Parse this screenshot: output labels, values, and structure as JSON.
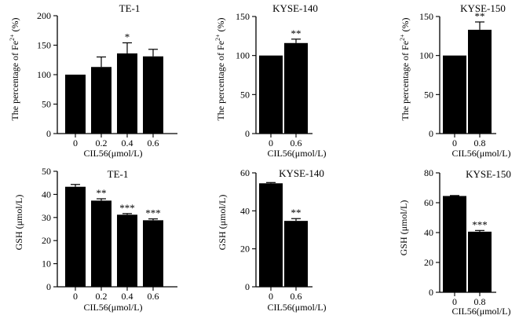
{
  "figure_label": "Fe2+ and GSH levels after CIL56 treatment",
  "chart_data": [
    {
      "type": "bar",
      "title": "TE-1",
      "ylabel_main": "The percentage of Fe",
      "ylabel_sup": "2+",
      "ylabel_tail": " (%)",
      "xlabel": "CIL56(μmol/L)",
      "categories": [
        "0",
        "0.2",
        "0.4",
        "0.6"
      ],
      "values": [
        100,
        113,
        136,
        131
      ],
      "errors": [
        0,
        17,
        18,
        12
      ],
      "significance": [
        "",
        "",
        "*",
        ""
      ],
      "yticks": [
        0,
        50,
        100,
        150,
        200
      ],
      "ylim": [
        0,
        200
      ]
    },
    {
      "type": "bar",
      "title": "KYSE-140",
      "ylabel_main": "The percentage of Fe",
      "ylabel_sup": "2+",
      "ylabel_tail": " (%)",
      "xlabel": "CIL56(μmol/L)",
      "categories": [
        "0",
        "0.6"
      ],
      "values": [
        100,
        116
      ],
      "errors": [
        0,
        5
      ],
      "significance": [
        "",
        "**"
      ],
      "yticks": [
        0,
        50,
        100,
        150
      ],
      "ylim": [
        0,
        150
      ]
    },
    {
      "type": "bar",
      "title": "KYSE-150",
      "ylabel_main": "The percentage of Fe",
      "ylabel_sup": "2+",
      "ylabel_tail": " (%)",
      "xlabel": "CIL56(μmol/L)",
      "categories": [
        "0",
        "0.8"
      ],
      "values": [
        100,
        133
      ],
      "errors": [
        0,
        10
      ],
      "significance": [
        "",
        "**"
      ],
      "yticks": [
        0,
        50,
        100,
        150
      ],
      "ylim": [
        0,
        150
      ]
    },
    {
      "type": "bar",
      "title": "TE-1",
      "ylabel_main": "GSH (μmol/L)",
      "ylabel_sup": "",
      "ylabel_tail": "",
      "xlabel": "CIL56(μmol/L)",
      "categories": [
        "0",
        "0.2",
        "0.4",
        "0.6"
      ],
      "values": [
        43.3,
        37.3,
        31.2,
        28.8
      ],
      "errors": [
        1.0,
        0.8,
        0.5,
        0.6
      ],
      "significance": [
        "",
        "**",
        "***",
        "***"
      ],
      "yticks": [
        0,
        10,
        20,
        30,
        40,
        50
      ],
      "ylim": [
        0,
        50
      ]
    },
    {
      "type": "bar",
      "title": "KYSE-140",
      "ylabel_main": "GSH (μmol/L)",
      "ylabel_sup": "",
      "ylabel_tail": "",
      "xlabel": "CIL56(μmol/L)",
      "categories": [
        "0",
        "0.6"
      ],
      "values": [
        54.5,
        34.7
      ],
      "errors": [
        0.4,
        1.2
      ],
      "significance": [
        "",
        "**"
      ],
      "yticks": [
        0,
        20,
        40,
        60
      ],
      "ylim": [
        0,
        60
      ]
    },
    {
      "type": "bar",
      "title": "KYSE-150",
      "ylabel_main": "GSH (μmol/L)",
      "ylabel_sup": "",
      "ylabel_tail": "",
      "xlabel": "CIL56(μmol/L)",
      "categories": [
        "0",
        "0.8"
      ],
      "values": [
        64.5,
        40.6
      ],
      "errors": [
        0.3,
        0.8
      ],
      "significance": [
        "",
        "***"
      ],
      "yticks": [
        0,
        20,
        40,
        60,
        80
      ],
      "ylim": [
        0,
        80
      ]
    }
  ]
}
